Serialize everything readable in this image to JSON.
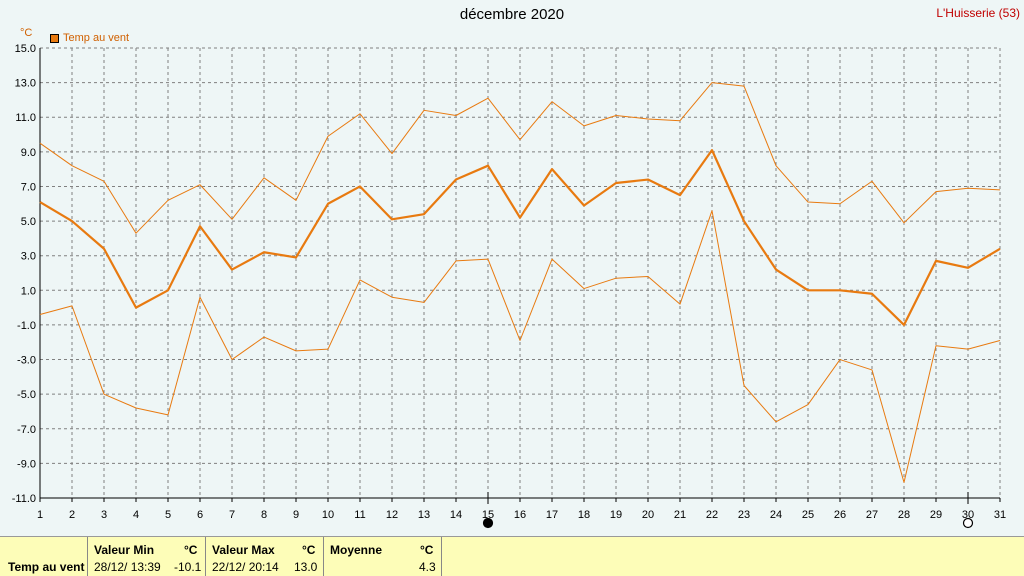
{
  "title": "décembre 2020",
  "station": "L'Huisserie (53)",
  "unit": "°C",
  "legend_label": "Temp au vent",
  "colors": {
    "series": "#e87a10",
    "grid": "#808080",
    "text_axis": "#000000"
  },
  "markers": [
    {
      "day": 15,
      "name": "new-moon-icon"
    },
    {
      "day": 30,
      "name": "full-moon-icon"
    }
  ],
  "chart_data": {
    "type": "line",
    "x": [
      1,
      2,
      3,
      4,
      5,
      6,
      7,
      8,
      9,
      10,
      11,
      12,
      13,
      14,
      15,
      16,
      17,
      18,
      19,
      20,
      21,
      22,
      23,
      24,
      25,
      26,
      27,
      28,
      29,
      30,
      31
    ],
    "xlim": [
      1,
      31
    ],
    "ylim": [
      -11,
      15
    ],
    "yticks": [
      "15.0",
      "13.0",
      "11.0",
      "9.0",
      "7.0",
      "5.0",
      "3.0",
      "1.0",
      "-1.0",
      "-3.0",
      "-5.0",
      "-7.0",
      "-9.0",
      "-11.0"
    ],
    "grid": true,
    "legend": "top-left",
    "series": [
      {
        "name": "Temp au vent",
        "style": "main",
        "values": [
          6.1,
          5.0,
          3.4,
          0.0,
          1.0,
          4.7,
          2.2,
          3.2,
          2.9,
          6.0,
          7.0,
          5.1,
          5.4,
          7.4,
          8.2,
          5.2,
          8.0,
          5.9,
          7.2,
          7.4,
          6.5,
          9.1,
          5.0,
          2.2,
          1.0,
          1.0,
          0.8,
          -1.0,
          2.7,
          2.3,
          3.4
        ]
      },
      {
        "style": "max",
        "values": [
          9.5,
          8.2,
          7.3,
          4.3,
          6.2,
          7.1,
          5.1,
          7.5,
          6.2,
          9.9,
          11.2,
          8.9,
          11.4,
          11.1,
          12.1,
          9.7,
          11.9,
          10.5,
          11.1,
          10.9,
          10.8,
          13.0,
          12.8,
          8.2,
          6.1,
          6.0,
          7.3,
          4.9,
          6.7,
          6.9,
          6.8
        ]
      },
      {
        "style": "min",
        "values": [
          -0.4,
          0.1,
          -5.0,
          -5.8,
          -6.2,
          0.6,
          -3.0,
          -1.7,
          -2.5,
          -2.4,
          1.6,
          0.6,
          0.3,
          2.7,
          2.8,
          -1.9,
          2.8,
          1.1,
          1.7,
          1.8,
          0.2,
          5.6,
          -4.5,
          -6.6,
          -5.6,
          -3.0,
          -3.6,
          -10.1,
          -2.2,
          -2.4,
          -1.9
        ]
      }
    ]
  },
  "footer": {
    "series_label": "Temp au vent",
    "min": {
      "header": "Valeur Min",
      "unit": "°C",
      "datetime": "28/12/  13:39",
      "value": "-10.1"
    },
    "max": {
      "header": "Valeur Max",
      "unit": "°C",
      "datetime": "22/12/  20:14",
      "value": "13.0"
    },
    "avg": {
      "header": "Moyenne",
      "unit": "°C",
      "value": "4.3"
    }
  }
}
